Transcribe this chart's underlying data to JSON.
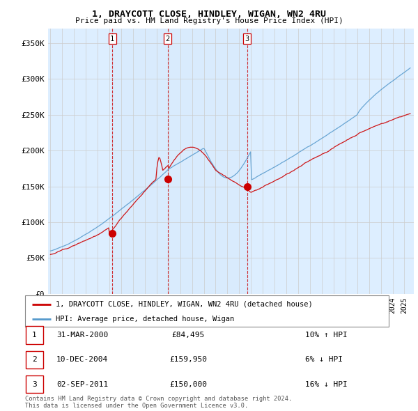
{
  "title": "1, DRAYCOTT CLOSE, HINDLEY, WIGAN, WN2 4RU",
  "subtitle": "Price paid vs. HM Land Registry's House Price Index (HPI)",
  "ylim": [
    0,
    370000
  ],
  "yticks": [
    0,
    50000,
    100000,
    150000,
    200000,
    250000,
    300000,
    350000
  ],
  "ytick_labels": [
    "£0",
    "£50K",
    "£100K",
    "£150K",
    "£200K",
    "£250K",
    "£300K",
    "£350K"
  ],
  "sale_color": "#cc0000",
  "hpi_color": "#5599cc",
  "vline_color": "#cc0000",
  "grid_color": "#cccccc",
  "plot_bg": "#ddeeff",
  "transactions": [
    {
      "num": 1,
      "date_label": "31-MAR-2000",
      "price": 84495,
      "pct": "10%",
      "dir": "↑",
      "year": 2000.25
    },
    {
      "num": 2,
      "date_label": "10-DEC-2004",
      "price": 159950,
      "pct": "6%",
      "dir": "↓",
      "year": 2004.94
    },
    {
      "num": 3,
      "date_label": "02-SEP-2011",
      "price": 150000,
      "pct": "16%",
      "dir": "↓",
      "year": 2011.67
    }
  ],
  "legend_sale_label": "1, DRAYCOTT CLOSE, HINDLEY, WIGAN, WN2 4RU (detached house)",
  "legend_hpi_label": "HPI: Average price, detached house, Wigan",
  "footnote": "Contains HM Land Registry data © Crown copyright and database right 2024.\nThis data is licensed under the Open Government Licence v3.0.",
  "table_rows": [
    {
      "num": 1,
      "date": "31-MAR-2000",
      "price": "£84,495",
      "info": "10% ↑ HPI"
    },
    {
      "num": 2,
      "date": "10-DEC-2004",
      "price": "£159,950",
      "info": "6% ↓ HPI"
    },
    {
      "num": 3,
      "date": "02-SEP-2011",
      "price": "£150,000",
      "info": "16% ↓ HPI"
    }
  ]
}
